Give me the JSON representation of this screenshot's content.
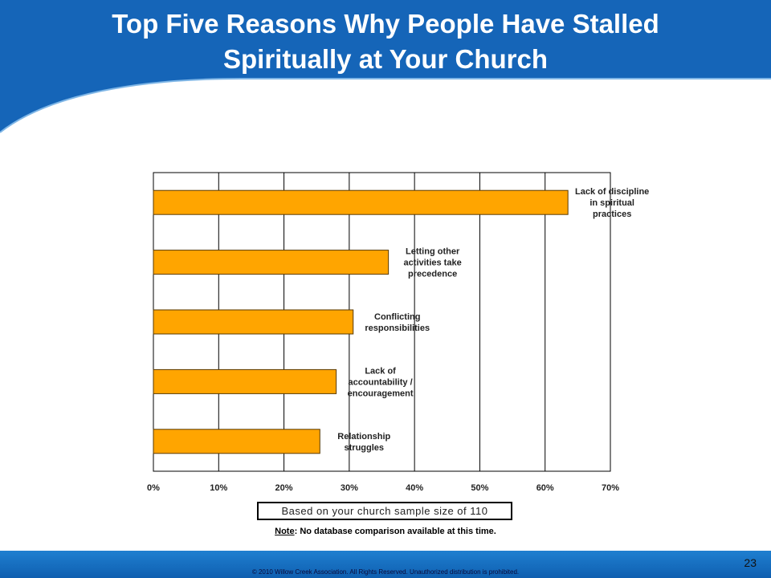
{
  "slide": {
    "title_line1": "Top Five Reasons Why People Have Stalled",
    "title_line2": "Spiritually at Your Church",
    "sample_note": "Based on your church sample size of 110",
    "note_prefix": "Note",
    "note_text": ": No database comparison available at this time.",
    "copyright": "© 2010 Willow Creek Association.  All Rights Reserved.  Unauthorized distribution is prohibited.",
    "page_number": "23"
  },
  "colors": {
    "banner": "#1565b8",
    "bar_fill": "#ffa500",
    "bar_stroke": "#5a3a00",
    "grid": "#000000"
  },
  "chart_data": {
    "type": "bar",
    "orientation": "horizontal",
    "categories": [
      [
        "Lack of discipline",
        "in spiritual",
        "practices"
      ],
      [
        "Letting other",
        "activities take",
        "precedence"
      ],
      [
        "Conflicting",
        "responsibilities"
      ],
      [
        "Lack of",
        "accountability /",
        "encouragement"
      ],
      [
        "Relationship",
        "struggles"
      ]
    ],
    "values": [
      63.5,
      36,
      30.6,
      28,
      25.5
    ],
    "xlim": [
      0,
      70
    ],
    "xticks": [
      "0%",
      "10%",
      "20%",
      "30%",
      "40%",
      "50%",
      "60%",
      "70%"
    ],
    "grid": true
  }
}
